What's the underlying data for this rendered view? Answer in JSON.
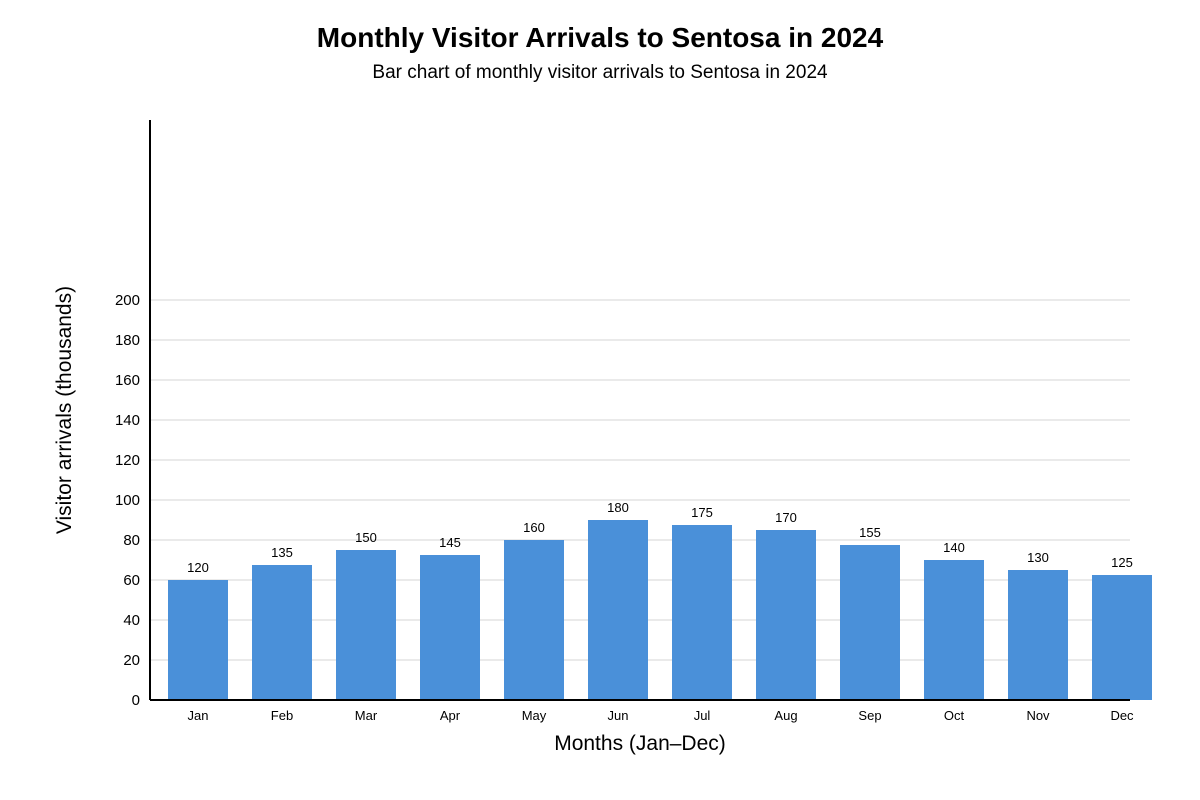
{
  "chart_data": {
    "type": "bar",
    "title": "Monthly Visitor Arrivals to Sentosa in 2024",
    "subtitle": "Bar chart of monthly visitor arrivals to Sentosa in 2024",
    "xlabel": "Months (Jan–Dec)",
    "ylabel": "Visitor arrivals (thousands)",
    "categories": [
      "Jan",
      "Feb",
      "Mar",
      "Apr",
      "May",
      "Jun",
      "Jul",
      "Aug",
      "Sep",
      "Oct",
      "Nov",
      "Dec"
    ],
    "values": [
      120,
      135,
      150,
      145,
      160,
      180,
      175,
      170,
      155,
      140,
      130,
      125
    ],
    "yticks": [
      0,
      20,
      40,
      60,
      80,
      100,
      120,
      140,
      160,
      180,
      200
    ],
    "ylim": [
      0,
      200
    ],
    "grid": true,
    "bar_color": "#4a90d9",
    "grid_color": "#dddddd"
  }
}
